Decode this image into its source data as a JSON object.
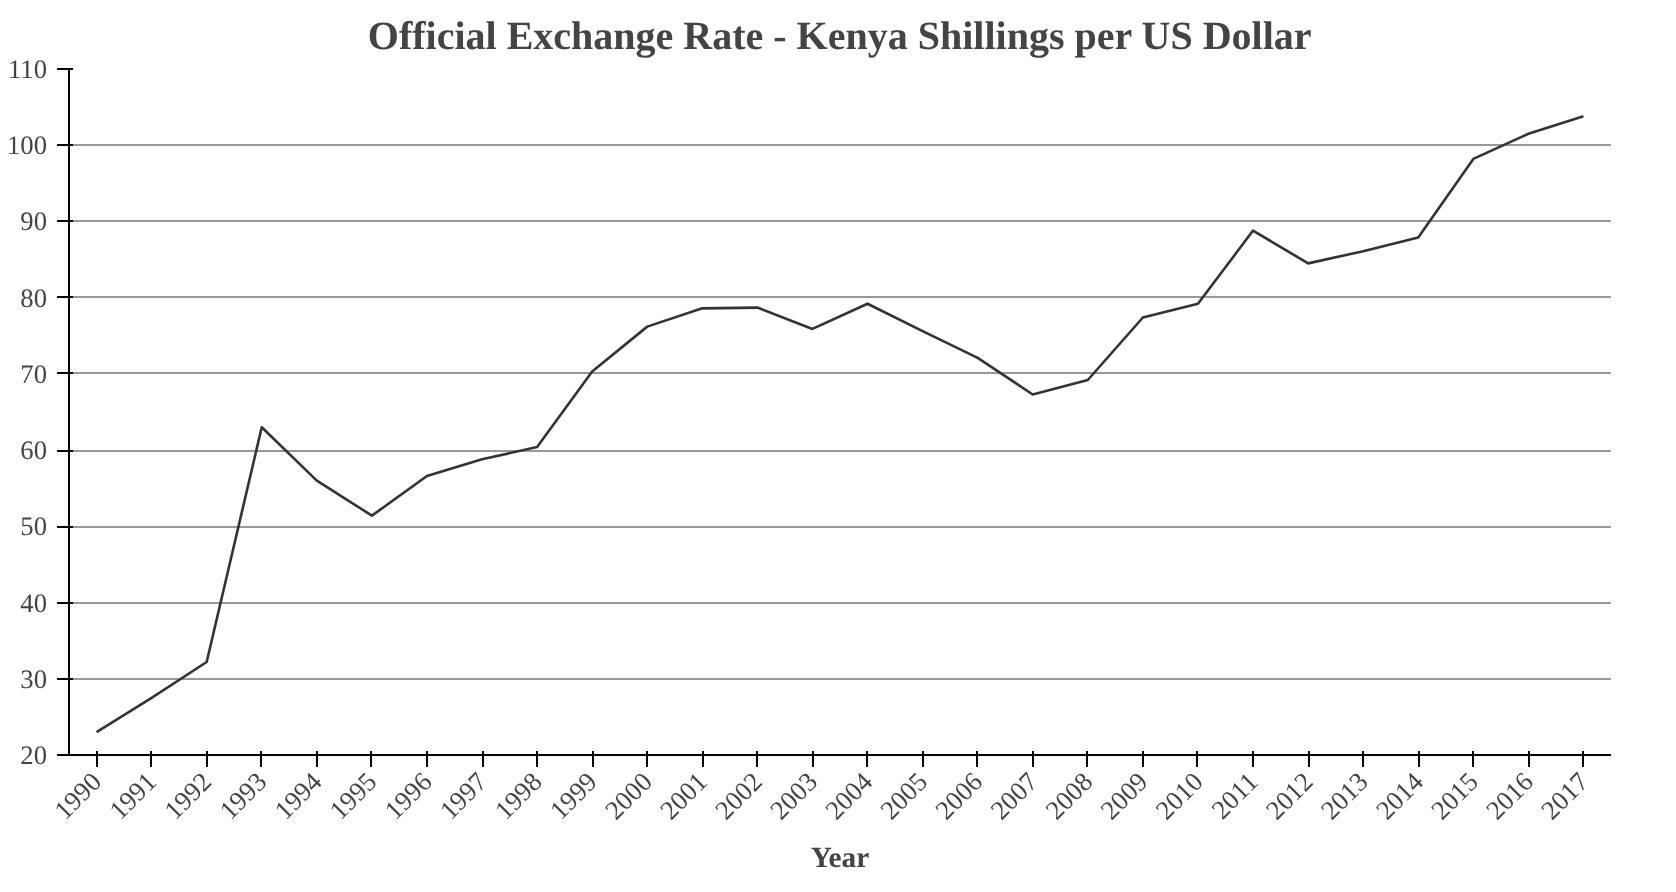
{
  "chart_data": {
    "type": "line",
    "title": "Official Exchange Rate - Kenya Shillings per US Dollar",
    "xlabel": "Year",
    "categories": [
      "1990",
      "1991",
      "1992",
      "1993",
      "1994",
      "1995",
      "1996",
      "1997",
      "1998",
      "1999",
      "2000",
      "2001",
      "2002",
      "2003",
      "2004",
      "2005",
      "2006",
      "2007",
      "2008",
      "2009",
      "2010",
      "2011",
      "2012",
      "2013",
      "2014",
      "2015",
      "2016",
      "2017"
    ],
    "series": [
      {
        "color": "#333333",
        "values": [
          23,
          27.5,
          32.2,
          63,
          56,
          51.4,
          56.6,
          58.8,
          60.4,
          70.3,
          76.2,
          78.6,
          78.7,
          75.9,
          79.2,
          75.6,
          72.1,
          67.3,
          69.2,
          77.4,
          79.2,
          88.8,
          84.5,
          86.1,
          87.9,
          98.2,
          101.5,
          103.8
        ]
      }
    ],
    "ylim": [
      20,
      110
    ],
    "yticks": [
      20,
      30,
      40,
      50,
      60,
      70,
      80,
      90,
      100,
      110
    ],
    "grid": "y",
    "marker": "none",
    "line_style": "solid"
  }
}
